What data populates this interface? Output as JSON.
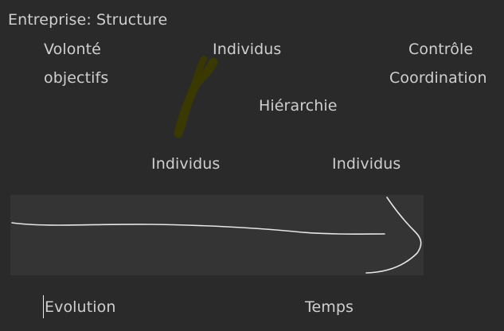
{
  "title": "Entreprise: Structure",
  "labels": {
    "volonte": "Volonté",
    "objectifs": "objectifs",
    "individus_top": "Individus",
    "controle": "Contrôle",
    "coordination": "Coordination",
    "hierarchie": "Hiérarchie",
    "individus_left": "Individus",
    "individus_right": "Individus",
    "evolution": "Evolution",
    "temps": "Temps"
  },
  "colors": {
    "background": "#2a2a2a",
    "text": "#cfcfcf",
    "band": "#343434",
    "arrow_stroke": "#e6e6e6",
    "highlighter_stroke": "#3b3a00"
  }
}
